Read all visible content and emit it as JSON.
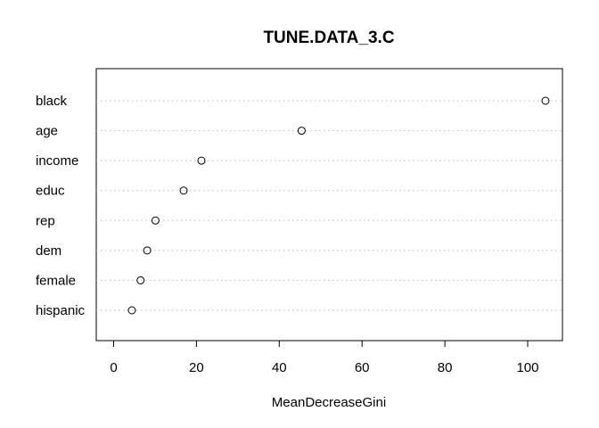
{
  "chart_data": {
    "type": "scatter",
    "subtype": "dotchart",
    "title": "TUNE.DATA_3.C",
    "xlabel": "MeanDecreaseGini",
    "ylabel": "",
    "xlim": [
      -4.2,
      108.4
    ],
    "xticks": [
      0,
      20,
      40,
      60,
      80,
      100
    ],
    "grid": "dotted-horizontal",
    "categories": [
      "black",
      "age",
      "income",
      "educ",
      "rep",
      "dem",
      "female",
      "hispanic"
    ],
    "values": [
      104.3,
      45.4,
      21.2,
      16.9,
      10.1,
      8.1,
      6.5,
      4.4
    ]
  }
}
